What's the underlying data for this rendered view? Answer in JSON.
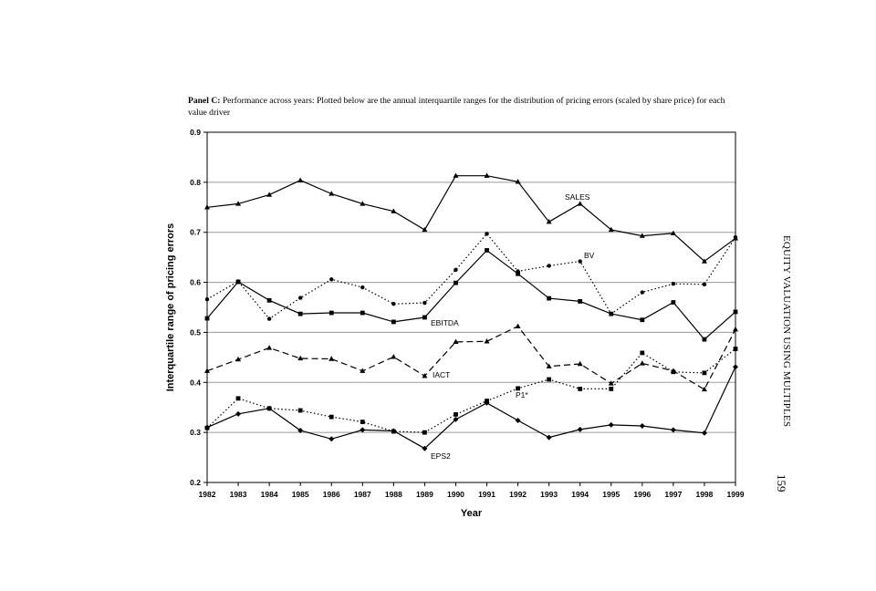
{
  "caption": {
    "bold": "Panel C:",
    "text": " Performance across years: Plotted below are the annual interquartile ranges for the distribution of pricing errors (scaled by share price) for each value driver"
  },
  "running_head": {
    "title": "EQUITY VALUATION USING MULTIPLES",
    "page": "159"
  },
  "chart_data": {
    "type": "line",
    "xlabel": "Year",
    "ylabel": "Interquartile range of pricing errors",
    "ylim": [
      0.2,
      0.9
    ],
    "yticks": [
      "0.2",
      "0.3",
      "0.4",
      "0.5",
      "0.6",
      "0.7",
      "0.8",
      "0.9"
    ],
    "grid": "horizontal",
    "legend": "none (series labelled directly on lines)",
    "x": [
      "1982",
      "1983",
      "1984",
      "1985",
      "1986",
      "1987",
      "1988",
      "1989",
      "1990",
      "1991",
      "1992",
      "1993",
      "1994",
      "1995",
      "1996",
      "1997",
      "1998",
      "1999"
    ],
    "series": [
      {
        "name": "SALES",
        "style": "solid",
        "marker": "triangle",
        "values": [
          0.75,
          0.757,
          0.775,
          0.804,
          0.777,
          0.757,
          0.742,
          0.705,
          0.813,
          0.813,
          0.801,
          0.721,
          0.757,
          0.705,
          0.693,
          0.698,
          0.642,
          0.688
        ]
      },
      {
        "name": "BV",
        "style": "dotted",
        "marker": "circle",
        "values": [
          0.566,
          0.602,
          0.527,
          0.569,
          0.606,
          0.59,
          0.557,
          0.559,
          0.625,
          0.697,
          0.622,
          0.633,
          0.642,
          0.537,
          0.58,
          0.597,
          0.596,
          0.69
        ]
      },
      {
        "name": "EBITDA",
        "style": "solid",
        "marker": "square",
        "values": [
          0.528,
          0.601,
          0.564,
          0.537,
          0.539,
          0.539,
          0.521,
          0.53,
          0.599,
          0.664,
          0.617,
          0.568,
          0.562,
          0.537,
          0.525,
          0.56,
          0.486,
          0.541
        ]
      },
      {
        "name": "IACT",
        "style": "dashed",
        "marker": "triangle",
        "values": [
          0.423,
          0.446,
          0.469,
          0.448,
          0.447,
          0.423,
          0.451,
          0.413,
          0.481,
          0.482,
          0.512,
          0.432,
          0.437,
          0.398,
          0.438,
          0.423,
          0.386,
          0.506
        ]
      },
      {
        "name": "P1*",
        "style": "dotted",
        "marker": "square",
        "values": [
          0.309,
          0.368,
          0.348,
          0.344,
          0.331,
          0.321,
          0.302,
          0.3,
          0.336,
          0.363,
          0.388,
          0.406,
          0.387,
          0.387,
          0.459,
          0.421,
          0.419,
          0.467
        ]
      },
      {
        "name": "EPS2",
        "style": "solid",
        "marker": "diamond",
        "values": [
          0.31,
          0.337,
          0.348,
          0.304,
          0.287,
          0.305,
          0.303,
          0.268,
          0.326,
          0.359,
          0.324,
          0.29,
          0.306,
          0.315,
          0.313,
          0.305,
          0.299,
          0.431
        ]
      }
    ]
  }
}
